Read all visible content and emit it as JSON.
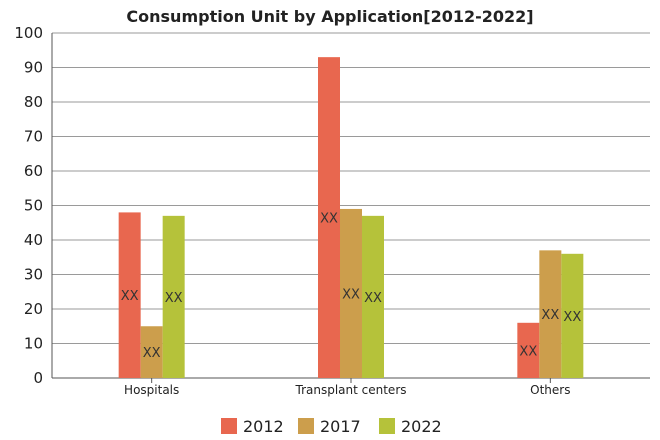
{
  "chart_data": {
    "type": "bar",
    "title": "Consumption Unit by  Application[2012-2022]",
    "categories": [
      "Hospitals",
      "Transplant centers",
      "Others"
    ],
    "series": [
      {
        "name": "2012",
        "color": "#e8674f",
        "values": [
          48,
          93,
          16
        ],
        "labels": [
          "XX",
          "XX",
          "XX"
        ]
      },
      {
        "name": "2017",
        "color": "#cc9e4c",
        "values": [
          15,
          49,
          37
        ],
        "labels": [
          "XX",
          "XX",
          "XX"
        ]
      },
      {
        "name": "2022",
        "color": "#b5c23a",
        "values": [
          47,
          47,
          36
        ],
        "labels": [
          "XX",
          "XX",
          "XX"
        ]
      }
    ],
    "yticks": [
      "0",
      "10",
      "20",
      "30",
      "40",
      "50",
      "60",
      "70",
      "80",
      "90",
      "100"
    ],
    "ylim": [
      0,
      100
    ],
    "grid": true,
    "legend_position": "bottom"
  }
}
